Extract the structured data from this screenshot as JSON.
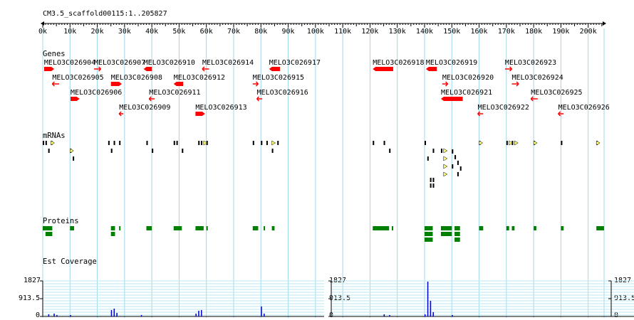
{
  "browser": {
    "region_label": "CM3.5_scaffold00115:1..205827"
  },
  "ruler": {
    "tick_labels": [
      "0k",
      "10k",
      "20k",
      "30k",
      "40k",
      "50k",
      "60k",
      "70k",
      "80k",
      "90k",
      "100k",
      "110k",
      "120k",
      "130k",
      "140k",
      "150k",
      "160k",
      "170k",
      "180k",
      "190k",
      "200k"
    ],
    "tick_values_kb": [
      0,
      10,
      20,
      30,
      40,
      50,
      60,
      70,
      80,
      90,
      100,
      110,
      120,
      130,
      140,
      150,
      160,
      170,
      180,
      190,
      200
    ],
    "end_kb": 205.827
  },
  "tracks": {
    "genes_label": "Genes",
    "mrnas_label": "mRNAs",
    "proteins_label": "Proteins",
    "est_label": "Est Coverage"
  },
  "genes": [
    {
      "name": "MELO3C026904",
      "start_kb": 0.5,
      "end_kb": 4.2,
      "strand": "+",
      "row": 0
    },
    {
      "name": "MELO3C026905",
      "start_kb": 3.5,
      "end_kb": 6.0,
      "strand": "-",
      "row": 1
    },
    {
      "name": "MELO3C026906",
      "start_kb": 10.2,
      "end_kb": 13.5,
      "strand": "+",
      "row": 2
    },
    {
      "name": "MELO3C026907",
      "start_kb": 18.8,
      "end_kb": 21.3,
      "strand": "+",
      "row": 0
    },
    {
      "name": "MELO3C026908",
      "start_kb": 25.0,
      "end_kb": 29.0,
      "strand": "+",
      "row": 1
    },
    {
      "name": "MELO3C026909",
      "start_kb": 28.0,
      "end_kb": 29.5,
      "strand": "-",
      "row": 3
    },
    {
      "name": "MELO3C026910",
      "start_kb": 37.0,
      "end_kb": 40.0,
      "strand": "-",
      "row": 0
    },
    {
      "name": "MELO3C026911",
      "start_kb": 39.0,
      "end_kb": 41.0,
      "strand": "-",
      "row": 2
    },
    {
      "name": "MELO3C026912",
      "start_kb": 48.0,
      "end_kb": 51.5,
      "strand": "-",
      "row": 1
    },
    {
      "name": "MELO3C026913",
      "start_kb": 56.0,
      "end_kb": 59.5,
      "strand": "+",
      "row": 3
    },
    {
      "name": "MELO3C026914",
      "start_kb": 58.5,
      "end_kb": 61.0,
      "strand": "-",
      "row": 0
    },
    {
      "name": "MELO3C026915",
      "start_kb": 77.0,
      "end_kb": 79.0,
      "strand": "+",
      "row": 1
    },
    {
      "name": "MELO3C026916",
      "start_kb": 78.5,
      "end_kb": 80.5,
      "strand": "-",
      "row": 2
    },
    {
      "name": "MELO3C026917",
      "start_kb": 83.0,
      "end_kb": 87.0,
      "strand": "-",
      "row": 0
    },
    {
      "name": "MELO3C026918",
      "start_kb": 121.0,
      "end_kb": 128.5,
      "strand": "-",
      "row": 0
    },
    {
      "name": "MELO3C026919",
      "start_kb": 140.5,
      "end_kb": 144.5,
      "strand": "-",
      "row": 0
    },
    {
      "name": "MELO3C026920",
      "start_kb": 146.5,
      "end_kb": 148.5,
      "strand": "+",
      "row": 1
    },
    {
      "name": "MELO3C026921",
      "start_kb": 146.0,
      "end_kb": 154.0,
      "strand": "-",
      "row": 2
    },
    {
      "name": "MELO3C026922",
      "start_kb": 159.5,
      "end_kb": 161.5,
      "strand": "-",
      "row": 3
    },
    {
      "name": "MELO3C026923",
      "start_kb": 169.5,
      "end_kb": 172.0,
      "strand": "+",
      "row": 0
    },
    {
      "name": "MELO3C026924",
      "start_kb": 172.0,
      "end_kb": 174.5,
      "strand": "+",
      "row": 1
    },
    {
      "name": "MELO3C026925",
      "start_kb": 179.0,
      "end_kb": 181.5,
      "strand": "-",
      "row": 2
    },
    {
      "name": "MELO3C026926",
      "start_kb": 189.0,
      "end_kb": 191.0,
      "strand": "-",
      "row": 3
    }
  ],
  "est_panels": [
    {
      "max_label": "1827",
      "mid_label": "913.5",
      "min_label": "0"
    },
    {
      "max_label": "1827",
      "mid_label": "913.5",
      "min_label": "0"
    },
    {
      "max_label": "1827",
      "mid_label": "913.5",
      "min_label": "0"
    }
  ],
  "colors": {
    "gene": "#ff0000",
    "protein": "#008000",
    "mrna_exon": "#000000",
    "utr": "#ffff66",
    "coverage_bar": "#0000cc",
    "gridline": "#a0d8e8",
    "coverage_hline": "#b8e8f0"
  }
}
